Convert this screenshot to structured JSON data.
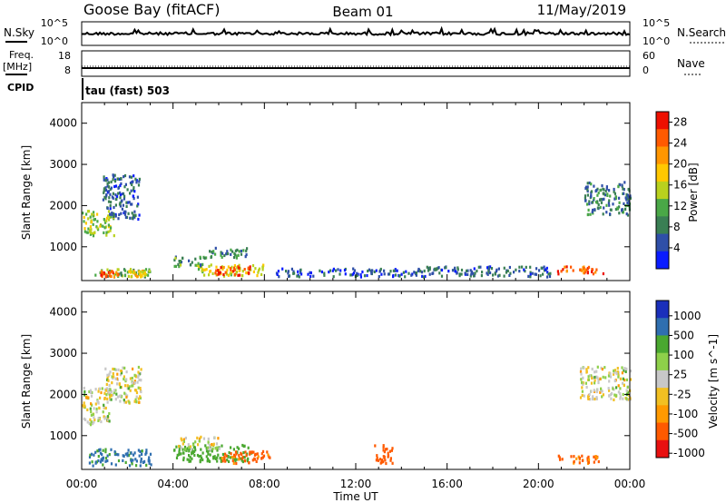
{
  "header": {
    "station": "Goose Bay (fitACF)",
    "beam": "Beam 01",
    "date": "11/May/2019"
  },
  "top_panels": {
    "nsky_label": "N.Sky",
    "nsearch_label": "N.Search",
    "nsky_ticks": [
      "10^5",
      "10^0"
    ],
    "nsearch_ticks": [
      "10^5",
      "10^0"
    ],
    "freq_label": "Freq.",
    "freq_unit": "[MHz]",
    "freq_ticks": [
      "18",
      "8"
    ],
    "nave_label": "Nave",
    "nave_ticks": [
      "60",
      "0"
    ],
    "cpid_label": "CPID",
    "cpid_value": "tau (fast) 503"
  },
  "colors": {
    "power": [
      "#0a1cff",
      "#2f4fa8",
      "#3a7f54",
      "#4aa847",
      "#b9d11e",
      "#ffc800",
      "#ff9600",
      "#ff5a00",
      "#ee1000"
    ],
    "velocity": [
      "#e81010",
      "#ff5a00",
      "#ff9a00",
      "#f2c022",
      "#c8c8c8",
      "#8ed04a",
      "#4aa830",
      "#2f6fb0",
      "#1a2fbb"
    ],
    "ground_scatter": "#c0c0c0"
  },
  "chart_data": [
    {
      "type": "heatmap",
      "name": "power-panel",
      "xlabel": "Time UT",
      "ylabel": "Slant Range [km]",
      "x_ticks": [
        "00:00",
        "04:00",
        "08:00",
        "12:00",
        "16:00",
        "20:00",
        "00:00"
      ],
      "x_range_hours": [
        0,
        24
      ],
      "ylim": [
        180,
        4500
      ],
      "y_ticks": [
        1000,
        2000,
        3000,
        4000
      ],
      "colorbar": {
        "label": "Power [dB]",
        "ticks": [
          "4",
          "8",
          "12",
          "16",
          "20",
          "24",
          "28"
        ],
        "range": [
          0,
          30
        ]
      },
      "regions": [
        {
          "t0": 0.5,
          "t1": 3.0,
          "r0": 300,
          "r1": 500,
          "value": 12
        },
        {
          "t0": 0.8,
          "t1": 1.6,
          "r0": 300,
          "r1": 450,
          "value": 26
        },
        {
          "t0": 2.0,
          "t1": 2.8,
          "r0": 300,
          "r1": 450,
          "value": 18
        },
        {
          "t0": 5.0,
          "t1": 8.0,
          "r0": 320,
          "r1": 600,
          "value": 16
        },
        {
          "t0": 5.8,
          "t1": 7.4,
          "r0": 340,
          "r1": 560,
          "value": 27
        },
        {
          "t0": 4.0,
          "t1": 5.5,
          "r0": 550,
          "r1": 800,
          "value": 10
        },
        {
          "t0": 5.5,
          "t1": 7.2,
          "r0": 750,
          "r1": 1000,
          "value": 8
        },
        {
          "t0": 0.0,
          "t1": 1.4,
          "r0": 1300,
          "r1": 1900,
          "value": 14
        },
        {
          "t0": 0.9,
          "t1": 2.5,
          "r0": 1700,
          "r1": 2800,
          "value": 6
        },
        {
          "t0": 8.5,
          "t1": 15.0,
          "r0": 300,
          "r1": 500,
          "value": 5
        },
        {
          "t0": 15.0,
          "t1": 20.5,
          "r0": 300,
          "r1": 550,
          "value": 6
        },
        {
          "t0": 20.8,
          "t1": 22.8,
          "r0": 350,
          "r1": 550,
          "value": 24
        },
        {
          "t0": 22.0,
          "t1": 24.0,
          "r0": 1800,
          "r1": 2600,
          "value": 8
        }
      ]
    },
    {
      "type": "heatmap",
      "name": "velocity-panel",
      "xlabel": "Time UT",
      "ylabel": "Slant Range [km]",
      "x_ticks": [
        "00:00",
        "04:00",
        "08:00",
        "12:00",
        "16:00",
        "20:00",
        "00:00"
      ],
      "x_range_hours": [
        0,
        24
      ],
      "ylim": [
        180,
        4500
      ],
      "y_ticks": [
        1000,
        2000,
        3000,
        4000
      ],
      "colorbar": {
        "label": "Velocity [m s^-1]",
        "ticks": [
          "1000",
          "500",
          "100",
          "25",
          "-25",
          "-100",
          "-500",
          "-1000"
        ]
      },
      "regions": [
        {
          "t0": 0.0,
          "t1": 1.2,
          "r0": 1300,
          "r1": 2200,
          "value": 0
        },
        {
          "t0": 1.0,
          "t1": 2.6,
          "r0": 1800,
          "r1": 2700,
          "value": 0
        },
        {
          "t0": 0.3,
          "t1": 3.0,
          "r0": 300,
          "r1": 700,
          "value": 120
        },
        {
          "t0": 4.0,
          "t1": 7.4,
          "r0": 400,
          "r1": 800,
          "value": 60
        },
        {
          "t0": 6.0,
          "t1": 8.2,
          "r0": 350,
          "r1": 650,
          "value": -120
        },
        {
          "t0": 4.2,
          "t1": 6.0,
          "r0": 700,
          "r1": 1000,
          "value": 0
        },
        {
          "t0": 12.8,
          "t1": 13.6,
          "r0": 350,
          "r1": 800,
          "value": -300
        },
        {
          "t0": 20.8,
          "t1": 22.6,
          "r0": 350,
          "r1": 550,
          "value": -110
        },
        {
          "t0": 21.8,
          "t1": 24.0,
          "r0": 1900,
          "r1": 2700,
          "value": 0
        }
      ]
    }
  ]
}
